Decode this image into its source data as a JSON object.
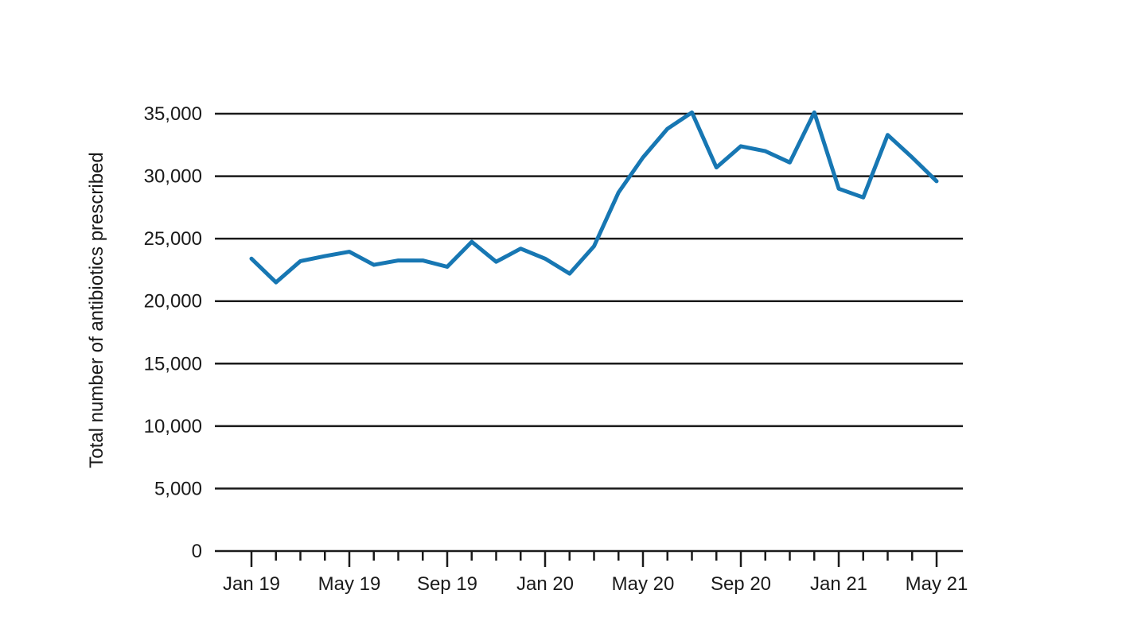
{
  "chart_data": {
    "type": "line",
    "title": "",
    "xlabel": "",
    "ylabel": "Total number of antibiotics prescribed",
    "ylim": [
      0,
      35000
    ],
    "yticks": [
      0,
      5000,
      10000,
      15000,
      20000,
      25000,
      30000,
      35000
    ],
    "ytick_labels": [
      "0",
      "5,000",
      "10,000",
      "15,000",
      "20,000",
      "25,000",
      "30,000",
      "35,000"
    ],
    "x": [
      "Jan 19",
      "Feb 19",
      "Mar 19",
      "Apr 19",
      "May 19",
      "Jun 19",
      "Jul 19",
      "Aug 19",
      "Sep 19",
      "Oct 19",
      "Nov 19",
      "Dec 19",
      "Jan 20",
      "Feb 20",
      "Mar 20",
      "Apr 20",
      "May 20",
      "Jun 20",
      "Jul 20",
      "Aug 20",
      "Sep 20",
      "Oct 20",
      "Nov 20",
      "Dec 20",
      "Jan 21",
      "Feb 21",
      "Mar 21",
      "Apr 21",
      "May 21"
    ],
    "xtick_labels": [
      "Jan 19",
      "May 19",
      "Sep 19",
      "Jan 20",
      "May 20",
      "Sep 20",
      "Jan 21",
      "May 21"
    ],
    "xtick_label_indices": [
      0,
      4,
      8,
      12,
      16,
      20,
      24,
      28
    ],
    "grid": true,
    "legend": "none",
    "series": [
      {
        "color": "#1777b3",
        "values": [
          23400,
          21500,
          23200,
          23600,
          23950,
          22900,
          23250,
          23250,
          22750,
          24750,
          23150,
          24200,
          23400,
          22200,
          24400,
          28700,
          31500,
          33800,
          35100,
          30700,
          32400,
          32000,
          31100,
          35100,
          29000,
          28300,
          33300,
          31500,
          29600
        ]
      }
    ]
  }
}
